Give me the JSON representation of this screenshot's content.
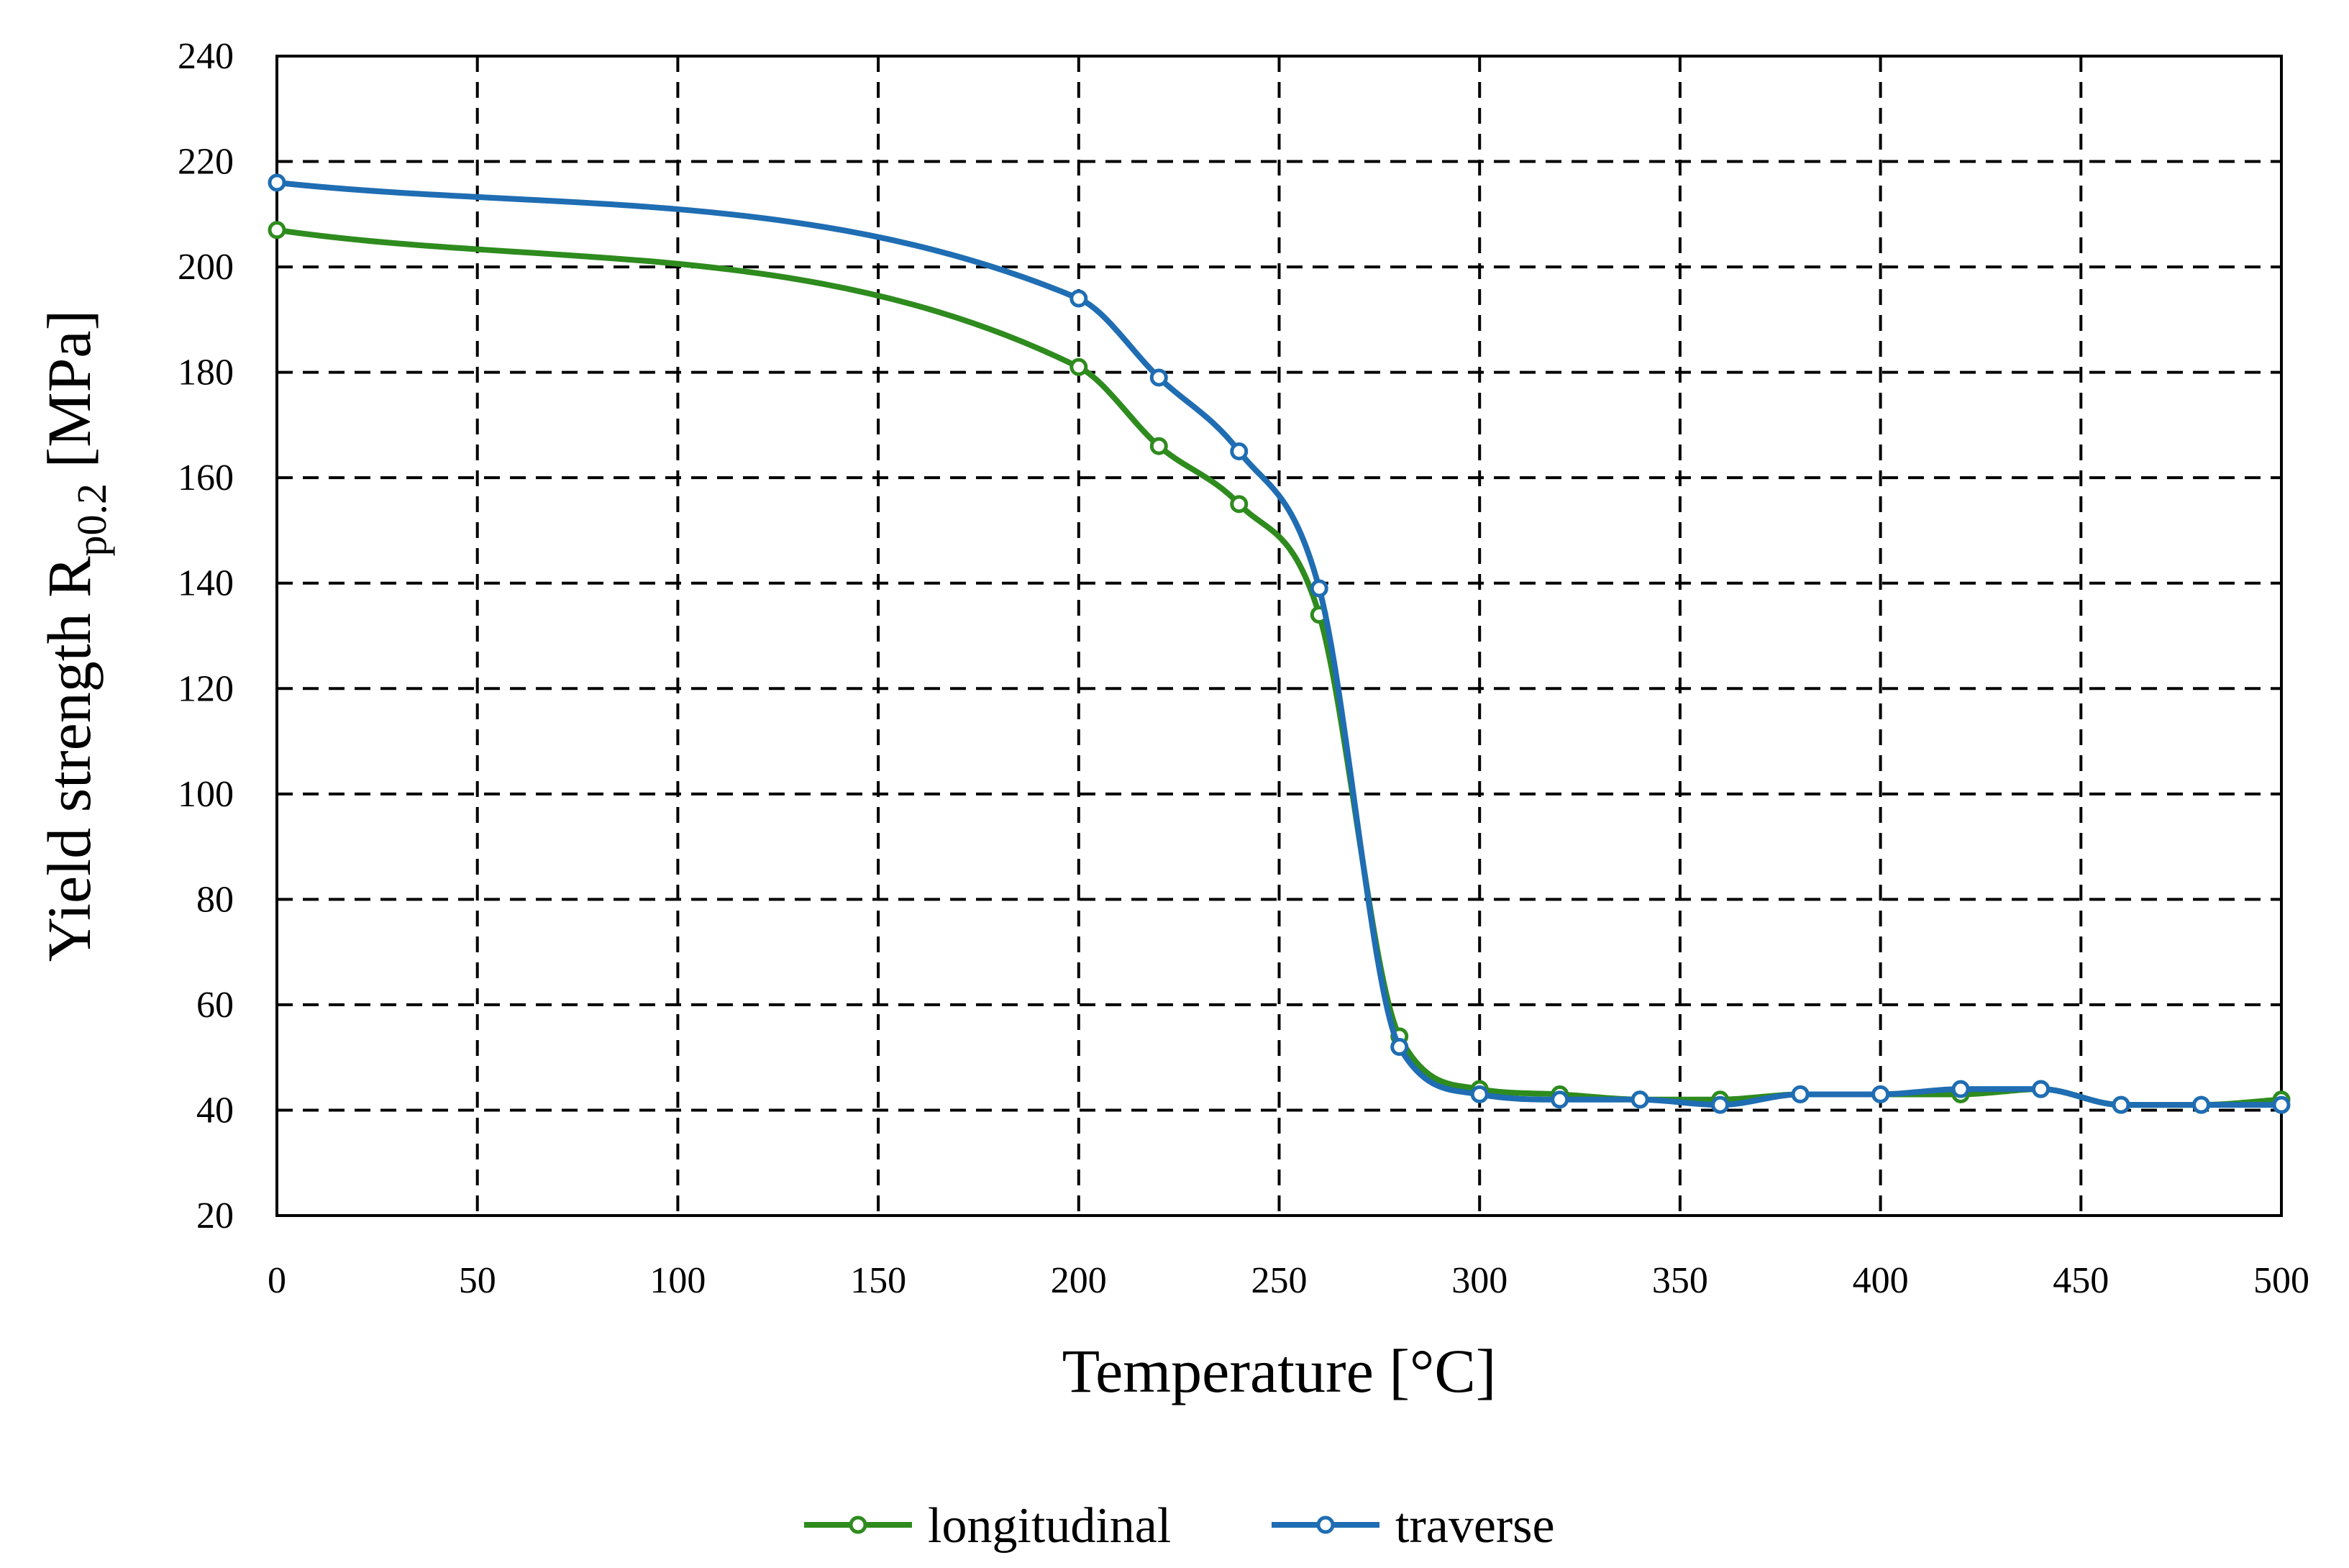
{
  "chart_data": {
    "type": "line",
    "title": "",
    "xlabel": "Temperature [°C]",
    "ylabel": {
      "main": "Yield strength R",
      "subscript": "p0.2",
      "unit": " [MPa]"
    },
    "xlim": [
      0,
      500
    ],
    "ylim": [
      20,
      240
    ],
    "xticks": [
      0,
      50,
      100,
      150,
      200,
      250,
      300,
      350,
      400,
      450,
      500
    ],
    "yticks": [
      20,
      40,
      60,
      80,
      100,
      120,
      140,
      160,
      180,
      200,
      220,
      240
    ],
    "grid": true,
    "legend_position": "bottom",
    "series": [
      {
        "name": "longitudinal",
        "color": "#2e8b1e",
        "x": [
          0,
          200,
          220,
          240,
          260,
          280,
          300,
          320,
          340,
          360,
          380,
          400,
          420,
          440,
          460,
          480,
          500
        ],
        "y": [
          207,
          181,
          166,
          155,
          134,
          54,
          44,
          43,
          42,
          42,
          43,
          43,
          43,
          44,
          41,
          41,
          42
        ]
      },
      {
        "name": "traverse",
        "color": "#1f6db3",
        "x": [
          0,
          200,
          220,
          240,
          260,
          280,
          300,
          320,
          340,
          360,
          380,
          400,
          420,
          440,
          460,
          480,
          500
        ],
        "y": [
          216,
          194,
          179,
          165,
          139,
          52,
          43,
          42,
          42,
          41,
          43,
          43,
          44,
          44,
          41,
          41,
          41
        ]
      }
    ]
  }
}
